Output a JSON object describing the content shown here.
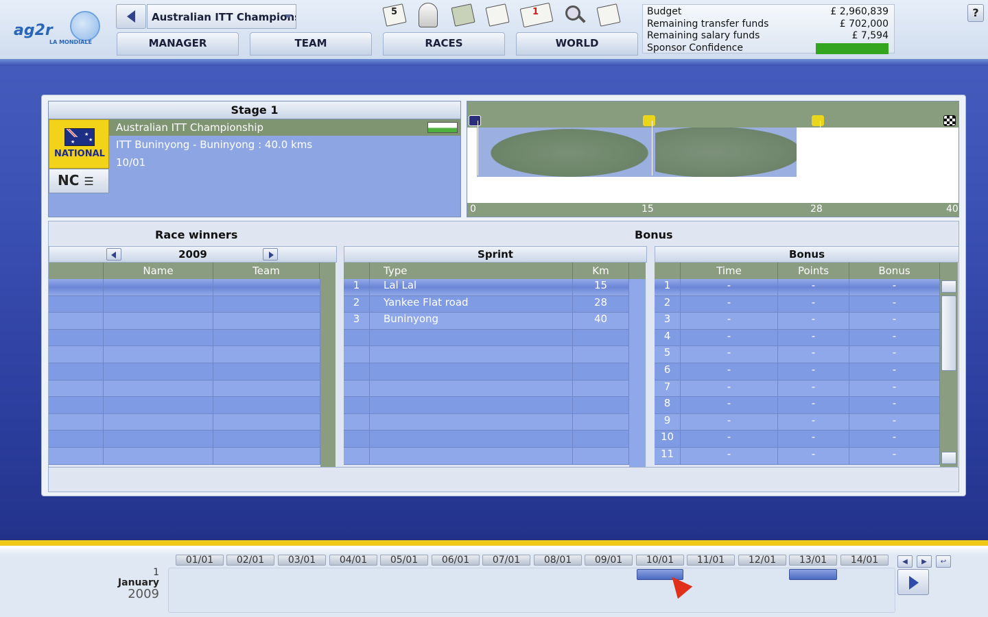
{
  "header": {
    "race_title": "Australian ITT Championship",
    "tabs": [
      "MANAGER",
      "TEAM",
      "RACES",
      "WORLD"
    ],
    "inbox_count": "1",
    "calendar_day": "5",
    "help_label": "?"
  },
  "logo": {
    "word": "ag2r",
    "sub": "LA MONDIALE"
  },
  "budget": {
    "rows": [
      {
        "label": "Budget",
        "value": "£ 2,960,839"
      },
      {
        "label": "Remaining transfer funds",
        "value": "£ 702,000"
      },
      {
        "label": "Remaining salary funds",
        "value": "£ 7,594"
      }
    ],
    "confidence_label": "Sponsor Confidence",
    "confidence_color": "#33a51f"
  },
  "stage": {
    "title": "Stage 1",
    "category_label": "NATIONAL",
    "class_label": "NC",
    "race_name": "Australian ITT Championship",
    "route": "ITT Buninyong - Buninyong : 40.0 kms",
    "date": "10/01"
  },
  "profile": {
    "km_labels": [
      "0",
      "15",
      "28",
      "40"
    ]
  },
  "race_winners": {
    "title": "Race winners",
    "year": "2009",
    "columns": [
      "Name",
      "Team"
    ]
  },
  "bonus_section": {
    "title": "Bonus"
  },
  "sprint": {
    "title": "Sprint",
    "columns": [
      "Type",
      "Km"
    ],
    "rows": [
      {
        "n": "1",
        "type": "Lal Lal",
        "km": "15"
      },
      {
        "n": "2",
        "type": "Yankee Flat road",
        "km": "28"
      },
      {
        "n": "3",
        "type": "Buninyong",
        "km": "40"
      }
    ]
  },
  "bonus": {
    "title": "Bonus",
    "columns": [
      "Time",
      "Points",
      "Bonus"
    ],
    "rows": [
      {
        "n": "1",
        "time": "-",
        "points": "-",
        "bonus": "-"
      },
      {
        "n": "2",
        "time": "-",
        "points": "-",
        "bonus": "-"
      },
      {
        "n": "3",
        "time": "-",
        "points": "-",
        "bonus": "-"
      },
      {
        "n": "4",
        "time": "-",
        "points": "-",
        "bonus": "-"
      },
      {
        "n": "5",
        "time": "-",
        "points": "-",
        "bonus": "-"
      },
      {
        "n": "6",
        "time": "-",
        "points": "-",
        "bonus": "-"
      },
      {
        "n": "7",
        "time": "-",
        "points": "-",
        "bonus": "-"
      },
      {
        "n": "8",
        "time": "-",
        "points": "-",
        "bonus": "-"
      },
      {
        "n": "9",
        "time": "-",
        "points": "-",
        "bonus": "-"
      },
      {
        "n": "10",
        "time": "-",
        "points": "-",
        "bonus": "-"
      },
      {
        "n": "11",
        "time": "-",
        "points": "-",
        "bonus": "-"
      }
    ]
  },
  "timeline": {
    "dates": [
      "01/01",
      "02/01",
      "03/01",
      "04/01",
      "05/01",
      "06/01",
      "07/01",
      "08/01",
      "09/01",
      "10/01",
      "11/01",
      "12/01",
      "13/01",
      "14/01"
    ],
    "day": "1",
    "month": "January",
    "year": "2009"
  }
}
